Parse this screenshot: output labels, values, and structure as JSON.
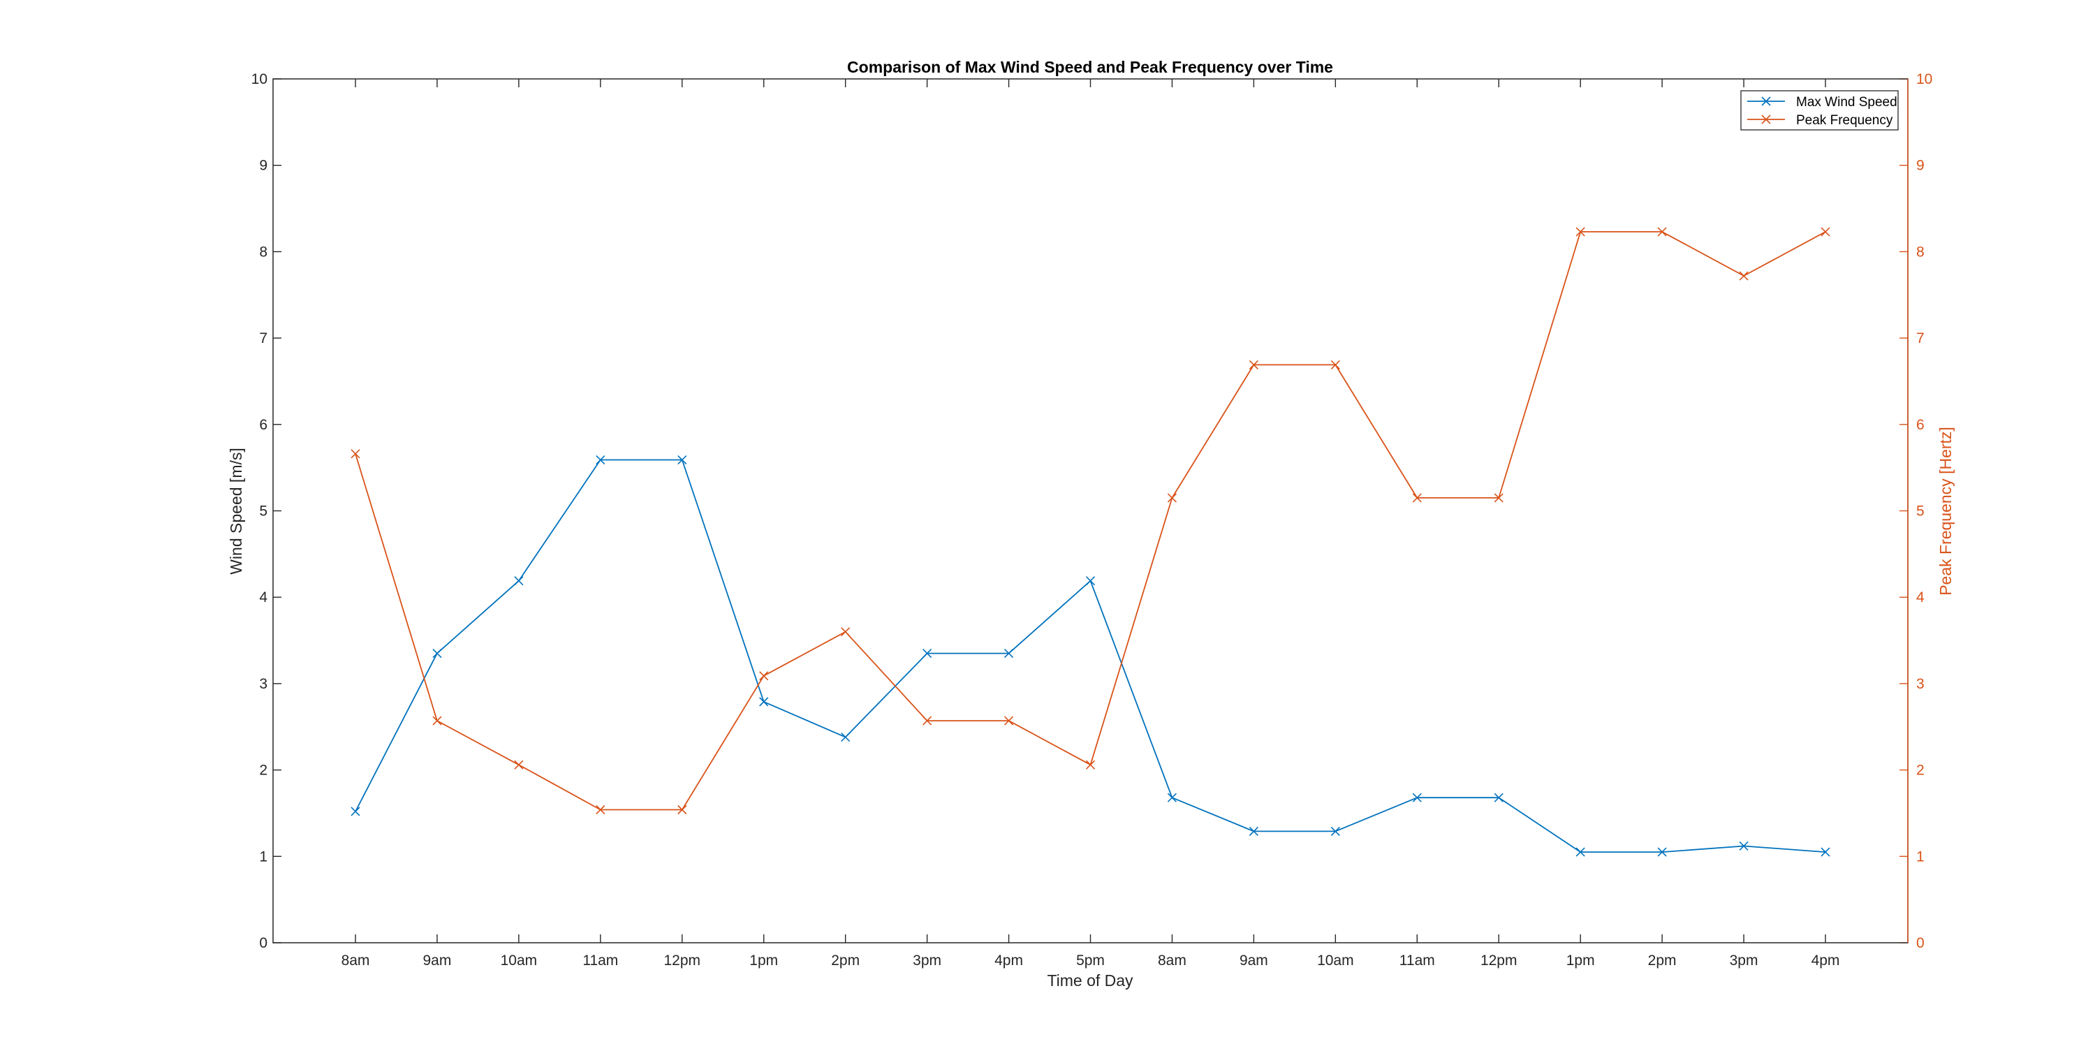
{
  "chart_data": {
    "type": "line",
    "title": "Comparison of Max Wind Speed and Peak Frequency over Time",
    "xlabel": "Time of Day",
    "ylabel_left": "Wind Speed [m/s]",
    "ylabel_right": "Peak Frequency [Hertz]",
    "categories": [
      "8am",
      "9am",
      "10am",
      "11am",
      "12pm",
      "1pm",
      "2pm",
      "3pm",
      "4pm",
      "5pm",
      "8am",
      "9am",
      "10am",
      "11am",
      "12pm",
      "1pm",
      "2pm",
      "3pm",
      "4pm"
    ],
    "ylim_left": [
      0,
      10
    ],
    "ylim_right": [
      0,
      10
    ],
    "yticks": [
      0,
      1,
      2,
      3,
      4,
      5,
      6,
      7,
      8,
      9,
      10
    ],
    "grid": false,
    "legend_position": "top-right",
    "series": [
      {
        "name": "Max Wind Speed",
        "axis": "left",
        "color": "#0072BD",
        "marker": "x",
        "values": [
          1.52,
          3.35,
          4.19,
          5.59,
          5.59,
          2.79,
          2.38,
          3.35,
          3.35,
          4.19,
          1.68,
          1.29,
          1.29,
          1.68,
          1.68,
          1.05,
          1.05,
          1.12,
          1.05
        ]
      },
      {
        "name": "Peak Frequency",
        "axis": "right",
        "color": "#D95319",
        "marker": "x",
        "values": [
          5.66,
          2.57,
          2.06,
          1.54,
          1.54,
          3.09,
          3.6,
          2.57,
          2.57,
          2.06,
          5.15,
          6.69,
          6.69,
          5.15,
          5.15,
          8.23,
          8.23,
          7.72,
          8.23
        ]
      }
    ]
  },
  "colors": {
    "left_axis": "#262626",
    "right_axis": "#D95319"
  }
}
